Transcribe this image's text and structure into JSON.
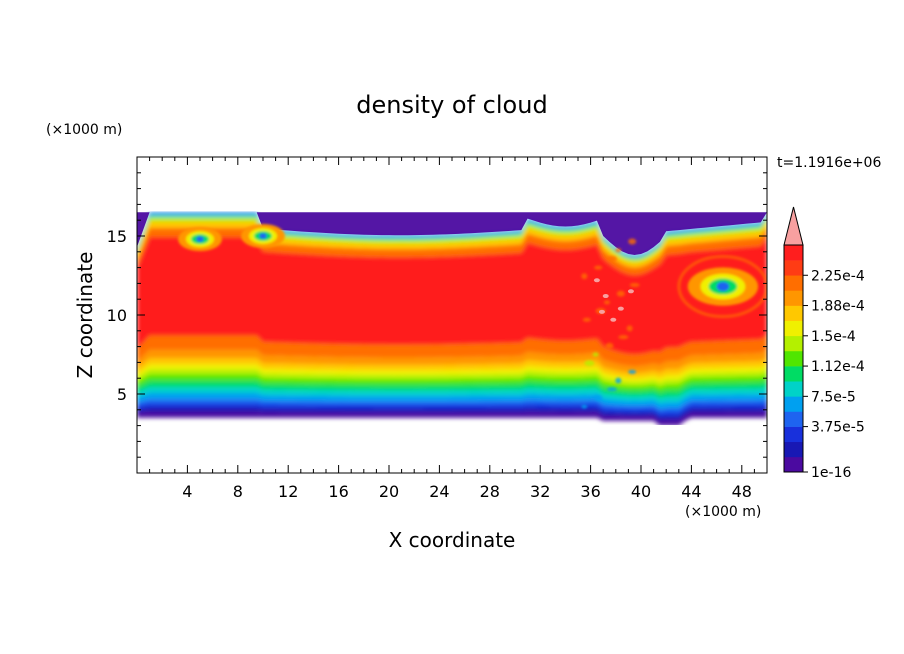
{
  "chart_data": {
    "type": "heatmap",
    "title": "density of cloud",
    "xlabel": "X coordinate",
    "ylabel": "Z coordinate",
    "x_unit": "(×1000 m)",
    "z_unit": "(×1000 m)",
    "time_label": "t=1.1916e+06",
    "xlim": [
      0,
      50
    ],
    "ylim": [
      0,
      20
    ],
    "x_ticks": [
      4,
      8,
      12,
      16,
      20,
      24,
      28,
      32,
      36,
      40,
      44,
      48
    ],
    "y_ticks": [
      5,
      10,
      15
    ],
    "colorbar": {
      "labels": [
        "2.25e-4",
        "1.88e-4",
        "1.5e-4",
        "1.12e-4",
        "7.5e-5",
        "3.75e-5",
        "1e-16"
      ],
      "label_values": [
        0.000225,
        0.000188,
        0.00015,
        0.000112,
        7.5e-05,
        3.75e-05,
        1e-16
      ],
      "colors": [
        "#4b0aa0",
        "#1818b4",
        "#1830dc",
        "#1e64f0",
        "#00a0f0",
        "#00d2c8",
        "#00dc64",
        "#50e600",
        "#b4f000",
        "#f0f000",
        "#ffc800",
        "#ff9600",
        "#ff6e00",
        "#ff3c14",
        "#ff1e1e"
      ],
      "over_color": "#f8a0a0"
    },
    "cloud_base_km": 3.5,
    "cloud_top_km": 16.5,
    "vortices_km": [
      [
        5,
        14.8
      ],
      [
        10,
        15
      ],
      [
        46.5,
        11.8
      ]
    ]
  }
}
